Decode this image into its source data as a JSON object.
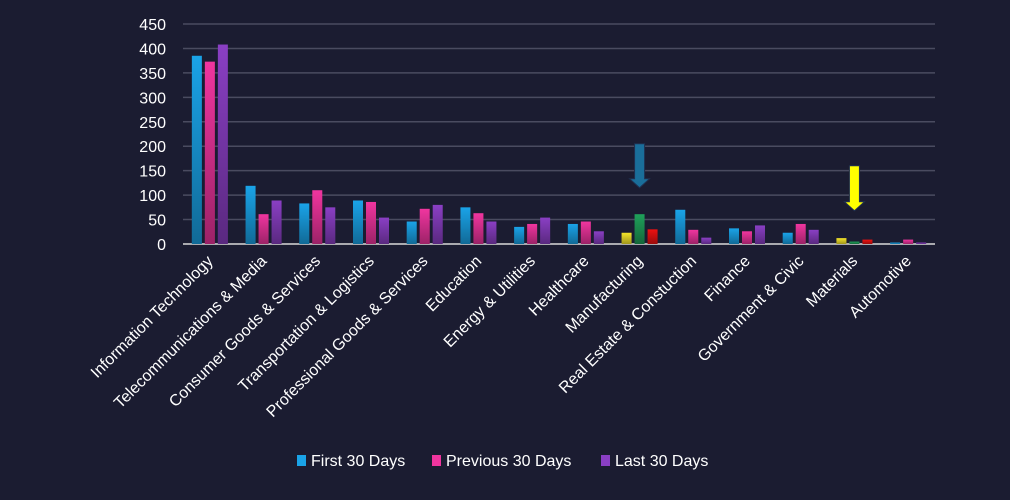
{
  "chart_data": {
    "type": "bar",
    "title": "",
    "xlabel": "",
    "ylabel": "",
    "ylim": [
      0,
      450
    ],
    "yticks": [
      0,
      50,
      100,
      150,
      200,
      250,
      300,
      350,
      400,
      450
    ],
    "grid": true,
    "legend_position": "bottom",
    "categories": [
      "Information Technology",
      "Telecommunications & Media",
      "Consumer Goods &  Services",
      "Transportation & Logistics",
      "Professional Goods & Services",
      "Education",
      "Energy & Utilities",
      "Healthcare",
      "Manufacturing",
      "Real Estate & Constuction",
      "Finance",
      "Government & Civic",
      "Materials",
      "Automotive"
    ],
    "series": [
      {
        "name": "First 30 Days",
        "color": "#1aa3e8",
        "values": [
          385,
          119,
          83,
          89,
          46,
          75,
          35,
          41,
          23,
          70,
          32,
          23,
          12,
          3
        ]
      },
      {
        "name": "Previous 30 Days",
        "color": "#f0359f",
        "values": [
          373,
          61,
          110,
          86,
          72,
          63,
          41,
          46,
          61,
          29,
          26,
          41,
          5,
          9
        ]
      },
      {
        "name": "Last 30 Days",
        "color": "#8a3fc4",
        "values": [
          408,
          89,
          75,
          54,
          80,
          46,
          54,
          26,
          30,
          13,
          38,
          29,
          9,
          3
        ]
      }
    ],
    "point_color_overrides": [
      {
        "category": "Manufacturing",
        "colors": [
          "#f5e52a",
          "#1fa05a",
          "#ee1111"
        ]
      },
      {
        "category": "Materials",
        "colors": [
          "#f5e52a",
          "#1fa05a",
          "#ee1111"
        ]
      }
    ],
    "annotations": [
      {
        "type": "arrow",
        "category": "Manufacturing",
        "color": "#1a6e9a",
        "from_value": 205,
        "to_value": 115
      },
      {
        "type": "arrow",
        "category": "Materials",
        "color": "#ffff00",
        "from_value": 160,
        "to_value": 68
      }
    ]
  }
}
